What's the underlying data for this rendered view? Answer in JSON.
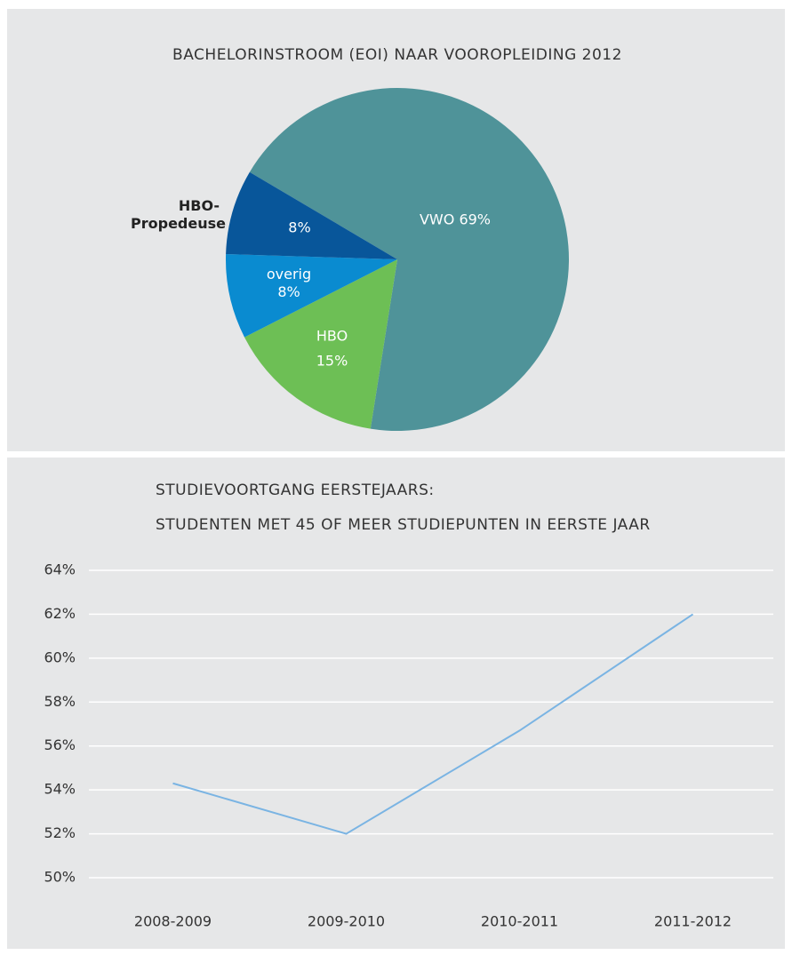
{
  "chart_data": [
    {
      "type": "pie",
      "title": "BACHELORINSTROOM (EOI) NAAR VOOROPLEIDING 2012",
      "categories": [
        "VWO",
        "HBO",
        "overig",
        "HBO-Propedeuse"
      ],
      "values": [
        69,
        15,
        8,
        8
      ],
      "value_labels": [
        "69%",
        "15%",
        "8%",
        "8%"
      ],
      "colors": [
        "#4f9399",
        "#6dbf55",
        "#0a8bd0",
        "#08569a"
      ]
    },
    {
      "type": "line",
      "title": "STUDIEVOORTGANG EERSTEJAARS:",
      "subtitle": "STUDENTEN MET 45 OF MEER STUDIEPUNTEN IN EERSTE JAAR",
      "categories": [
        "2008-2009",
        "2009-2010",
        "2010-2011",
        "2011-2012"
      ],
      "series": [
        {
          "name": null,
          "color": "#7ab4e3",
          "values": [
            54.3,
            52.0,
            56.7,
            62.0
          ]
        }
      ],
      "ylim": [
        50,
        64
      ],
      "yticks": [
        {
          "value": 50,
          "label": "50%"
        },
        {
          "value": 52,
          "label": "52%"
        },
        {
          "value": 54,
          "label": "54%"
        },
        {
          "value": 56,
          "label": "56%"
        },
        {
          "value": 58,
          "label": "58%"
        },
        {
          "value": 60,
          "label": "60%"
        },
        {
          "value": 62,
          "label": "62%"
        },
        {
          "value": 64,
          "label": "64%"
        }
      ],
      "grid": true
    }
  ]
}
